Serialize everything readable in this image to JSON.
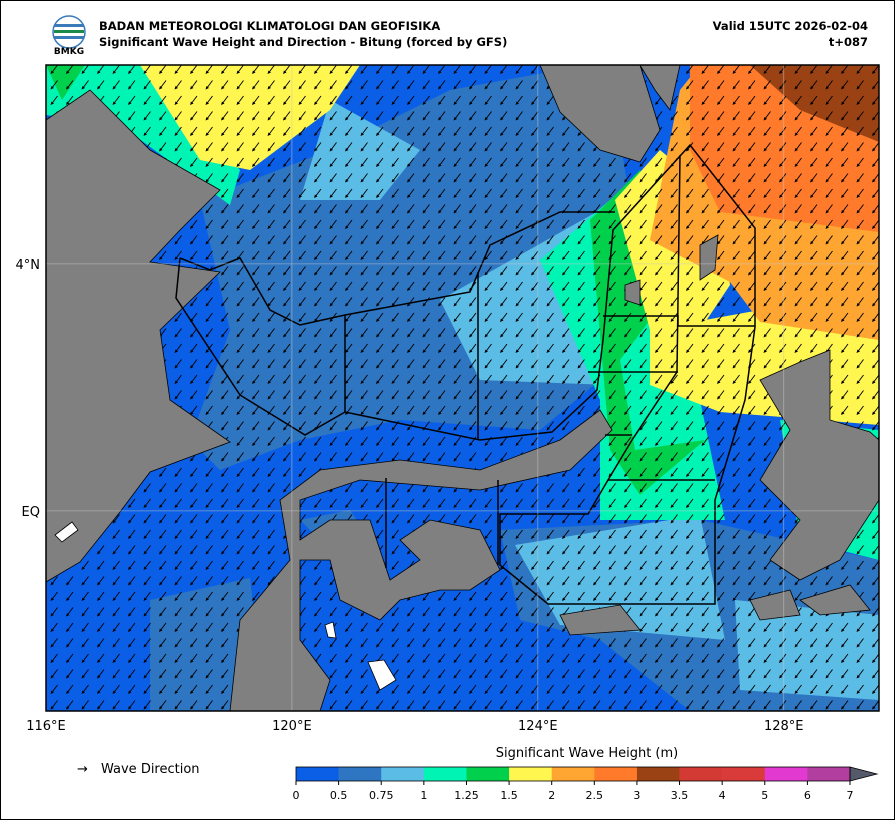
{
  "header": {
    "logo_text": "BMKG",
    "agency": "BADAN METEOROLOGI KLIMATOLOGI DAN GEOFISIKA",
    "subtitle": "Significant Wave Height and Direction - Bitung (forced by GFS)",
    "valid": "Valid 15UTC 2026-02-04",
    "lead": "t+087"
  },
  "map": {
    "xlim": [
      116,
      129.55
    ],
    "ylim": [
      -3.24,
      7.22
    ],
    "xticks": [
      {
        "value": 116,
        "label": "116°E"
      },
      {
        "value": 120,
        "label": "120°E"
      },
      {
        "value": 124,
        "label": "124°E"
      },
      {
        "value": 128,
        "label": "128°E"
      }
    ],
    "yticks": [
      {
        "value": 0,
        "label": "EQ"
      },
      {
        "value": 4,
        "label": "4°N"
      }
    ],
    "grid": true
  },
  "legend": {
    "symbol": "→",
    "label": "Wave Direction"
  },
  "colorbar": {
    "title": "Significant Wave Height (m)",
    "bounds": [
      0,
      0.5,
      0.75,
      1,
      1.25,
      1.5,
      2,
      2.5,
      3,
      3.5,
      4,
      5,
      6,
      7
    ],
    "colors": [
      "#0a5fe6",
      "#2e75c2",
      "#5bbde6",
      "#00f5b5",
      "#00d04c",
      "#fff64f",
      "#ffa531",
      "#ff7a2a",
      "#9a4213",
      "#d33a33",
      "#d93a3a",
      "#e23ad0",
      "#b23ea0"
    ],
    "extend_color": "#555a6a"
  }
}
